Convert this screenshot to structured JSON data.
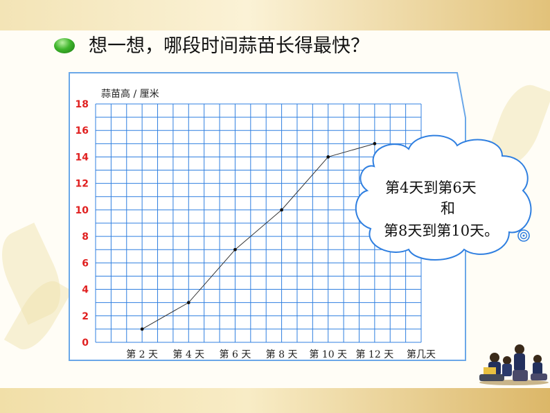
{
  "header": {
    "question": "想一想，哪段时间蒜苗长得最快？"
  },
  "chart_data": {
    "type": "line",
    "ylabel": "蒜苗高 / 厘米",
    "ylim": [
      0,
      18
    ],
    "yticks": [
      "0",
      "2",
      "4",
      "6",
      "8",
      "10",
      "12",
      "14",
      "16",
      "18"
    ],
    "xlabels": [
      "第 2 天",
      "第 4 天",
      "第 6 天",
      "第 8 天",
      "第 10 天",
      "第 12 天",
      "第几天"
    ],
    "x": [
      2,
      4,
      6,
      8,
      10,
      12
    ],
    "values": [
      1,
      3,
      7,
      10,
      14,
      15
    ],
    "grid": true
  },
  "bubble": {
    "line1": "第4天到第6天",
    "line2": "和",
    "line3": "第8天到第10天。"
  },
  "colors": {
    "grid": "#2f7fe0",
    "tick_label": "#e02020",
    "border": "#6aa7e8",
    "line": "#333333"
  },
  "icons": {
    "bullet": "green-bullet-icon",
    "spiral": "spiral-icon",
    "kids": "reading-children-icon"
  }
}
